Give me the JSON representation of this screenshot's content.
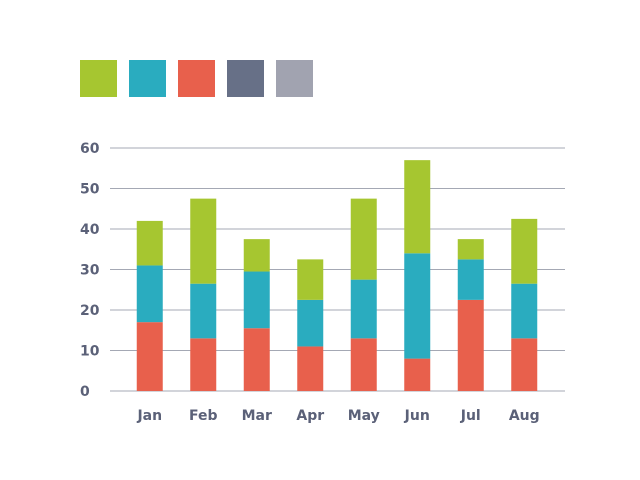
{
  "chart_data": {
    "type": "bar",
    "stacked": true,
    "categories": [
      "Jan",
      "Feb",
      "Mar",
      "Apr",
      "May",
      "Jun",
      "Jul",
      "Aug"
    ],
    "series": [
      {
        "color": "#e8604c",
        "values": [
          17,
          13,
          15.5,
          11,
          13,
          8,
          22.5,
          13
        ]
      },
      {
        "color": "#2aacbf",
        "values": [
          14,
          13.5,
          14,
          11.5,
          14.5,
          26,
          10,
          13.5
        ]
      },
      {
        "color": "#a6c630",
        "values": [
          11,
          21,
          8,
          10,
          20,
          23,
          5,
          16
        ]
      }
    ],
    "legend_swatches": [
      "#a6c630",
      "#2aacbf",
      "#e8604c",
      "#677087",
      "#a1a3b0"
    ],
    "legend_position": "top-left",
    "yticks": [
      "0",
      "10",
      "20",
      "30",
      "40",
      "50",
      "60"
    ],
    "ylim": [
      0,
      60
    ],
    "grid": true,
    "axis_text_color": "#5b6178",
    "grid_color": "#a4a8b4"
  }
}
